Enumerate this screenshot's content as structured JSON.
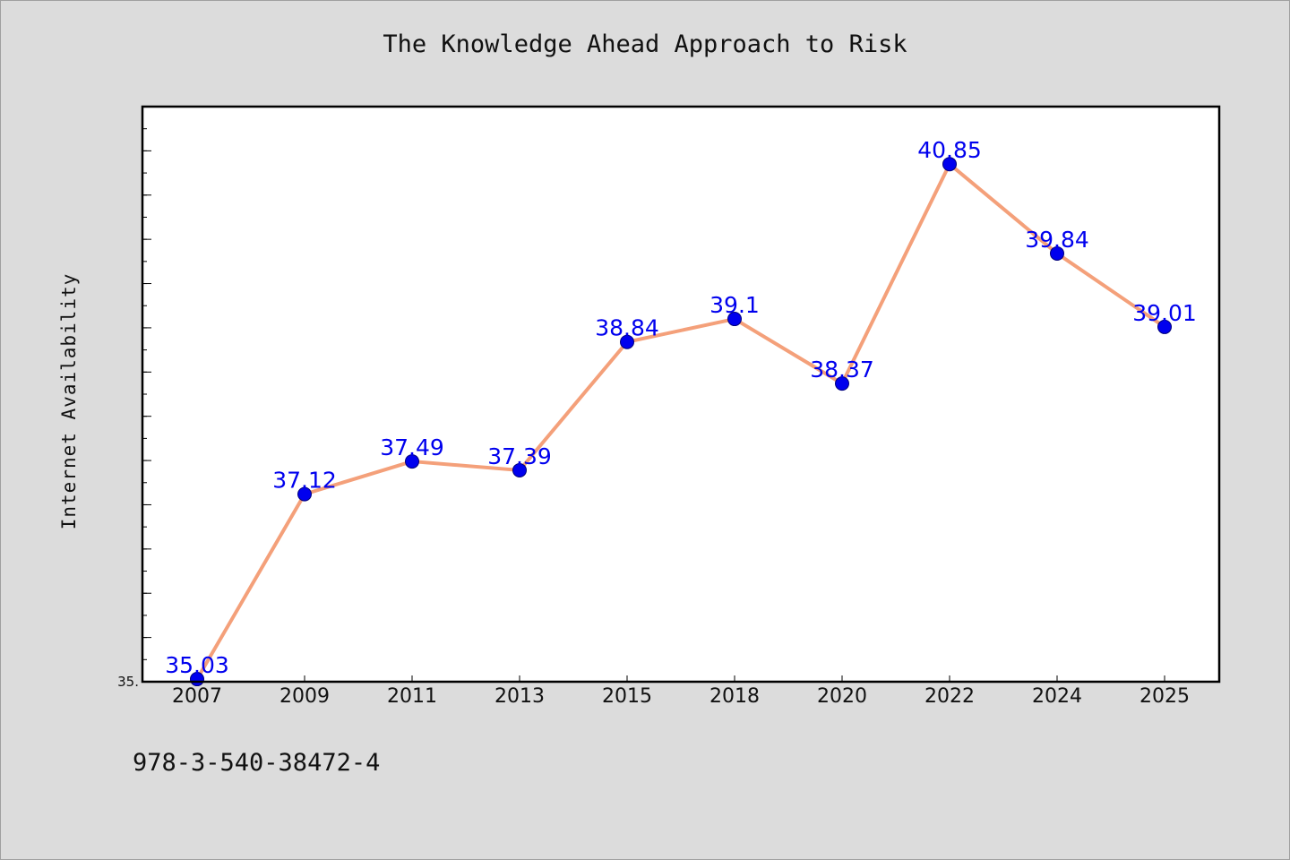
{
  "figure": {
    "title": "The Knowledge Ahead Approach to Risk",
    "footer_text": "978-3-540-38472-4"
  },
  "colors": {
    "background": "#dcdcdc",
    "plot_background": "#ffffff",
    "line": "#f4a07a",
    "marker": "#0000ee",
    "data_label": "#0000ee"
  },
  "chart_data": {
    "type": "line",
    "title": "The Knowledge Ahead Approach to Risk",
    "xlabel": "",
    "ylabel": "Internet Availability",
    "categories": [
      "2007",
      "2009",
      "2011",
      "2013",
      "2015",
      "2018",
      "2020",
      "2022",
      "2024",
      "2025"
    ],
    "series": [
      {
        "values": [
          35.03,
          37.12,
          37.49,
          37.39,
          38.84,
          39.1,
          38.37,
          40.85,
          39.84,
          39.01
        ],
        "data_labels": [
          "35.03",
          "37.12",
          "37.49",
          "37.39",
          "38.84",
          "39.1",
          "38.37",
          "40.85",
          "39.84",
          "39.01"
        ]
      }
    ],
    "ylim": [
      35.0,
      41.5
    ],
    "ytick_labels": [
      {
        "value": 35.0,
        "label": "35."
      }
    ],
    "grid": false,
    "legend": "none"
  }
}
